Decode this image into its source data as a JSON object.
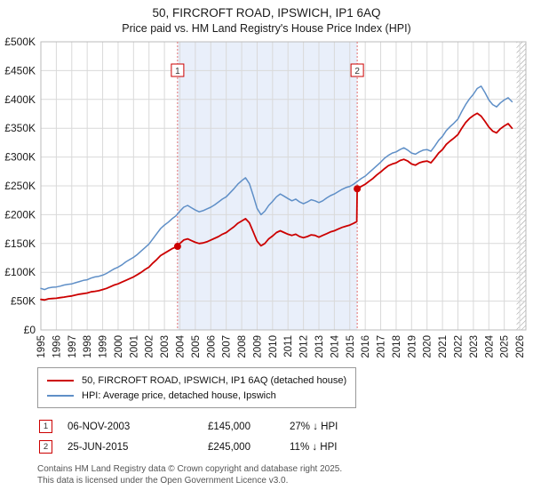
{
  "title": "50, FIRCROFT ROAD, IPSWICH, IP1 6AQ",
  "subtitle": "Price paid vs. HM Land Registry's House Price Index (HPI)",
  "legend": [
    {
      "label": "50, FIRCROFT ROAD, IPSWICH, IP1 6AQ (detached house)",
      "color": "#cc0000"
    },
    {
      "label": "HPI: Average price, detached house, Ipswich",
      "color": "#5f8fc7"
    }
  ],
  "sales": [
    {
      "num": "1",
      "date": "06-NOV-2003",
      "price": "£145,000",
      "hpi": "27% ↓ HPI"
    },
    {
      "num": "2",
      "date": "25-JUN-2015",
      "price": "£245,000",
      "hpi": "11% ↓ HPI"
    }
  ],
  "footer_lines": [
    "Contains HM Land Registry data © Crown copyright and database right 2025.",
    "This data is licensed under the Open Government Licence v3.0."
  ],
  "chart_data": {
    "type": "line",
    "title": "50, FIRCROFT ROAD, IPSWICH, IP1 6AQ",
    "xlabel": "",
    "ylabel": "",
    "grid": true,
    "legend_position": "bottom-left",
    "xlim": [
      1995,
      2026.4
    ],
    "ylim": [
      0,
      500000
    ],
    "x_ticks": [
      1995,
      1996,
      1997,
      1998,
      1999,
      2000,
      2001,
      2002,
      2003,
      2004,
      2005,
      2006,
      2007,
      2008,
      2009,
      2010,
      2011,
      2012,
      2013,
      2014,
      2015,
      2016,
      2017,
      2018,
      2019,
      2020,
      2021,
      2022,
      2023,
      2024,
      2025,
      2026
    ],
    "y_ticks": [
      {
        "v": 0,
        "label": "£0"
      },
      {
        "v": 50000,
        "label": "£50K"
      },
      {
        "v": 100000,
        "label": "£100K"
      },
      {
        "v": 150000,
        "label": "£150K"
      },
      {
        "v": 200000,
        "label": "£200K"
      },
      {
        "v": 250000,
        "label": "£250K"
      },
      {
        "v": 300000,
        "label": "£300K"
      },
      {
        "v": 350000,
        "label": "£350K"
      },
      {
        "v": 400000,
        "label": "£400K"
      },
      {
        "v": 450000,
        "label": "£450K"
      },
      {
        "v": 500000,
        "label": "£500K"
      }
    ],
    "shaded_region": [
      2003.85,
      2015.48
    ],
    "shade_color": "#e9effa",
    "hatch_region": [
      2025.8,
      2026.4
    ],
    "hatch_color": "#999999",
    "grid_color": "#d9d9d9",
    "dash_color": "#e07070",
    "markers": [
      {
        "num": "1",
        "x": 2003.85,
        "y": 145000
      },
      {
        "num": "2",
        "x": 2015.48,
        "y": 245000
      }
    ],
    "series": [
      {
        "name": "HPI: Average price, detached house, Ipswich",
        "color": "#5f8fc7",
        "width": 1.5,
        "points": [
          [
            1995,
            72000
          ],
          [
            1995.25,
            70000
          ],
          [
            1995.5,
            73000
          ],
          [
            1995.75,
            74000
          ],
          [
            1996,
            74500
          ],
          [
            1996.25,
            76000
          ],
          [
            1996.5,
            78000
          ],
          [
            1996.75,
            79000
          ],
          [
            1997,
            80000
          ],
          [
            1997.25,
            82000
          ],
          [
            1997.5,
            84000
          ],
          [
            1997.75,
            86000
          ],
          [
            1998,
            87000
          ],
          [
            1998.25,
            90000
          ],
          [
            1998.5,
            92000
          ],
          [
            1998.75,
            93000
          ],
          [
            1999,
            95000
          ],
          [
            1999.25,
            98000
          ],
          [
            1999.5,
            102000
          ],
          [
            1999.75,
            106000
          ],
          [
            2000,
            109000
          ],
          [
            2000.25,
            113000
          ],
          [
            2000.5,
            118000
          ],
          [
            2000.75,
            122000
          ],
          [
            2001,
            126000
          ],
          [
            2001.25,
            131000
          ],
          [
            2001.5,
            137000
          ],
          [
            2001.75,
            143000
          ],
          [
            2002,
            149000
          ],
          [
            2002.25,
            158000
          ],
          [
            2002.5,
            167000
          ],
          [
            2002.75,
            176000
          ],
          [
            2003,
            182000
          ],
          [
            2003.25,
            187000
          ],
          [
            2003.5,
            193000
          ],
          [
            2003.75,
            198000
          ],
          [
            2004,
            206000
          ],
          [
            2004.25,
            213000
          ],
          [
            2004.5,
            216000
          ],
          [
            2004.75,
            212000
          ],
          [
            2005,
            208000
          ],
          [
            2005.25,
            205000
          ],
          [
            2005.5,
            207000
          ],
          [
            2005.75,
            210000
          ],
          [
            2006,
            213000
          ],
          [
            2006.25,
            217000
          ],
          [
            2006.5,
            222000
          ],
          [
            2006.75,
            227000
          ],
          [
            2007,
            231000
          ],
          [
            2007.25,
            238000
          ],
          [
            2007.5,
            245000
          ],
          [
            2007.75,
            253000
          ],
          [
            2008,
            259000
          ],
          [
            2008.25,
            264000
          ],
          [
            2008.5,
            254000
          ],
          [
            2008.75,
            233000
          ],
          [
            2009,
            211000
          ],
          [
            2009.25,
            200000
          ],
          [
            2009.5,
            206000
          ],
          [
            2009.75,
            216000
          ],
          [
            2010,
            223000
          ],
          [
            2010.25,
            231000
          ],
          [
            2010.5,
            236000
          ],
          [
            2010.75,
            232000
          ],
          [
            2011,
            228000
          ],
          [
            2011.25,
            224000
          ],
          [
            2011.5,
            227000
          ],
          [
            2011.75,
            222000
          ],
          [
            2012,
            219000
          ],
          [
            2012.25,
            222000
          ],
          [
            2012.5,
            226000
          ],
          [
            2012.75,
            224000
          ],
          [
            2013,
            221000
          ],
          [
            2013.25,
            224000
          ],
          [
            2013.5,
            229000
          ],
          [
            2013.75,
            233000
          ],
          [
            2014,
            236000
          ],
          [
            2014.25,
            240000
          ],
          [
            2014.5,
            244000
          ],
          [
            2014.75,
            247000
          ],
          [
            2015,
            249000
          ],
          [
            2015.25,
            253000
          ],
          [
            2015.5,
            258000
          ],
          [
            2015.75,
            263000
          ],
          [
            2016,
            267000
          ],
          [
            2016.25,
            273000
          ],
          [
            2016.5,
            279000
          ],
          [
            2016.75,
            285000
          ],
          [
            2017,
            291000
          ],
          [
            2017.25,
            298000
          ],
          [
            2017.5,
            303000
          ],
          [
            2017.75,
            307000
          ],
          [
            2018,
            309000
          ],
          [
            2018.25,
            313000
          ],
          [
            2018.5,
            316000
          ],
          [
            2018.75,
            312000
          ],
          [
            2019,
            307000
          ],
          [
            2019.25,
            305000
          ],
          [
            2019.5,
            309000
          ],
          [
            2019.75,
            312000
          ],
          [
            2020,
            313000
          ],
          [
            2020.25,
            310000
          ],
          [
            2020.5,
            319000
          ],
          [
            2020.75,
            329000
          ],
          [
            2021,
            336000
          ],
          [
            2021.25,
            346000
          ],
          [
            2021.5,
            353000
          ],
          [
            2021.75,
            359000
          ],
          [
            2022,
            366000
          ],
          [
            2022.25,
            379000
          ],
          [
            2022.5,
            391000
          ],
          [
            2022.75,
            401000
          ],
          [
            2023,
            409000
          ],
          [
            2023.25,
            419000
          ],
          [
            2023.5,
            423000
          ],
          [
            2023.75,
            412000
          ],
          [
            2024,
            399000
          ],
          [
            2024.25,
            391000
          ],
          [
            2024.5,
            387000
          ],
          [
            2024.75,
            394000
          ],
          [
            2025,
            399000
          ],
          [
            2025.25,
            403000
          ],
          [
            2025.5,
            396000
          ]
        ]
      },
      {
        "name": "50, FIRCROFT ROAD, IPSWICH, IP1 6AQ (detached house)",
        "color": "#cc0000",
        "width": 1.8,
        "points": [
          [
            1995,
            53000
          ],
          [
            1995.25,
            52000
          ],
          [
            1995.5,
            54000
          ],
          [
            1995.75,
            54500
          ],
          [
            1996,
            55000
          ],
          [
            1996.25,
            56000
          ],
          [
            1996.5,
            57000
          ],
          [
            1996.75,
            58000
          ],
          [
            1997,
            59000
          ],
          [
            1997.25,
            60500
          ],
          [
            1997.5,
            62000
          ],
          [
            1997.75,
            63000
          ],
          [
            1998,
            64000
          ],
          [
            1998.25,
            66000
          ],
          [
            1998.5,
            67000
          ],
          [
            1998.75,
            68000
          ],
          [
            1999,
            70000
          ],
          [
            1999.25,
            72000
          ],
          [
            1999.5,
            75000
          ],
          [
            1999.75,
            78000
          ],
          [
            2000,
            80000
          ],
          [
            2000.25,
            83000
          ],
          [
            2000.5,
            86000
          ],
          [
            2000.75,
            89000
          ],
          [
            2001,
            92000
          ],
          [
            2001.25,
            96000
          ],
          [
            2001.5,
            100000
          ],
          [
            2001.75,
            105000
          ],
          [
            2002,
            109000
          ],
          [
            2002.25,
            116000
          ],
          [
            2002.5,
            122000
          ],
          [
            2002.75,
            129000
          ],
          [
            2003,
            133000
          ],
          [
            2003.25,
            137000
          ],
          [
            2003.5,
            141000
          ],
          [
            2003.85,
            145000
          ],
          [
            2004,
            150000
          ],
          [
            2004.25,
            156000
          ],
          [
            2004.5,
            158000
          ],
          [
            2004.75,
            155000
          ],
          [
            2005,
            152000
          ],
          [
            2005.25,
            150000
          ],
          [
            2005.5,
            151000
          ],
          [
            2005.75,
            153000
          ],
          [
            2006,
            156000
          ],
          [
            2006.25,
            159000
          ],
          [
            2006.5,
            162000
          ],
          [
            2006.75,
            166000
          ],
          [
            2007,
            169000
          ],
          [
            2007.25,
            174000
          ],
          [
            2007.5,
            179000
          ],
          [
            2007.75,
            185000
          ],
          [
            2008,
            189000
          ],
          [
            2008.25,
            193000
          ],
          [
            2008.5,
            186000
          ],
          [
            2008.75,
            170000
          ],
          [
            2009,
            154000
          ],
          [
            2009.25,
            146000
          ],
          [
            2009.5,
            150000
          ],
          [
            2009.75,
            158000
          ],
          [
            2010,
            163000
          ],
          [
            2010.25,
            169000
          ],
          [
            2010.5,
            172000
          ],
          [
            2010.75,
            169000
          ],
          [
            2011,
            166000
          ],
          [
            2011.25,
            164000
          ],
          [
            2011.5,
            166000
          ],
          [
            2011.75,
            162000
          ],
          [
            2012,
            160000
          ],
          [
            2012.25,
            162000
          ],
          [
            2012.5,
            165000
          ],
          [
            2012.75,
            164000
          ],
          [
            2013,
            161000
          ],
          [
            2013.25,
            164000
          ],
          [
            2013.5,
            167000
          ],
          [
            2013.75,
            170000
          ],
          [
            2014,
            172000
          ],
          [
            2014.25,
            175000
          ],
          [
            2014.5,
            178000
          ],
          [
            2014.75,
            180000
          ],
          [
            2015,
            182000
          ],
          [
            2015.25,
            185000
          ],
          [
            2015.45,
            188000
          ],
          [
            2015.48,
            245000
          ],
          [
            2015.75,
            249000
          ],
          [
            2016,
            253000
          ],
          [
            2016.25,
            258000
          ],
          [
            2016.5,
            263000
          ],
          [
            2016.75,
            269000
          ],
          [
            2017,
            274000
          ],
          [
            2017.25,
            280000
          ],
          [
            2017.5,
            285000
          ],
          [
            2017.75,
            288000
          ],
          [
            2018,
            290000
          ],
          [
            2018.25,
            294000
          ],
          [
            2018.5,
            296000
          ],
          [
            2018.75,
            293000
          ],
          [
            2019,
            288000
          ],
          [
            2019.25,
            286000
          ],
          [
            2019.5,
            290000
          ],
          [
            2019.75,
            292000
          ],
          [
            2020,
            293000
          ],
          [
            2020.25,
            290000
          ],
          [
            2020.5,
            298000
          ],
          [
            2020.75,
            307000
          ],
          [
            2021,
            313000
          ],
          [
            2021.25,
            322000
          ],
          [
            2021.5,
            328000
          ],
          [
            2021.75,
            333000
          ],
          [
            2022,
            339000
          ],
          [
            2022.25,
            350000
          ],
          [
            2022.5,
            360000
          ],
          [
            2022.75,
            367000
          ],
          [
            2023,
            372000
          ],
          [
            2023.25,
            376000
          ],
          [
            2023.5,
            371000
          ],
          [
            2023.75,
            362000
          ],
          [
            2024,
            352000
          ],
          [
            2024.25,
            345000
          ],
          [
            2024.5,
            342000
          ],
          [
            2024.75,
            349000
          ],
          [
            2025,
            354000
          ],
          [
            2025.25,
            358000
          ],
          [
            2025.5,
            350000
          ]
        ]
      }
    ]
  }
}
